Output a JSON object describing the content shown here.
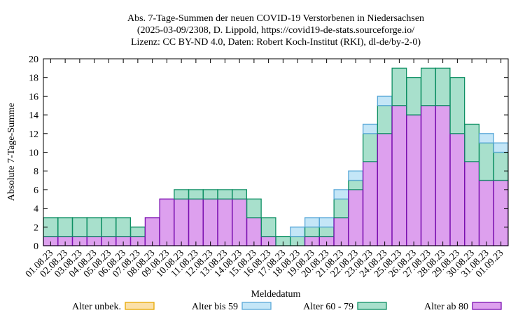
{
  "title": {
    "line1": "Abs. 7-Tage-Summen der neuen COVID-19 Verstorbenen in Niedersachsen",
    "line2": "(2025-03-09/2308, D. Lippold, https://covid19-de-stats.sourceforge.io/",
    "line3": "Lizenz: CC BY-ND 4.0, Daten: Robert Koch-Institut (RKI), dl-de/by-2-0)"
  },
  "chart_data": {
    "type": "bar",
    "stacked": true,
    "xlabel": "Meldedatum",
    "ylabel": "Absolute 7-Tage-Summe",
    "ylim": [
      0,
      20
    ],
    "yticks": [
      0,
      2,
      4,
      6,
      8,
      10,
      12,
      14,
      16,
      18,
      20
    ],
    "grid": false,
    "legend_position": "bottom",
    "categories": [
      "01.08.23",
      "02.08.23",
      "03.08.23",
      "04.08.23",
      "05.08.23",
      "06.08.23",
      "07.08.23",
      "08.08.23",
      "09.08.23",
      "10.08.23",
      "11.08.23",
      "12.08.23",
      "13.08.23",
      "14.08.23",
      "15.08.23",
      "16.08.23",
      "17.08.23",
      "18.08.23",
      "19.08.23",
      "20.08.23",
      "21.08.23",
      "22.08.23",
      "23.08.23",
      "24.08.23",
      "25.08.23",
      "26.08.23",
      "27.08.23",
      "28.08.23",
      "29.08.23",
      "30.08.23",
      "31.08.23",
      "01.09.23"
    ],
    "series": [
      {
        "name": "Alter ab 80",
        "fill": "#dda0ee",
        "stroke": "#7b10b0",
        "values": [
          1,
          1,
          1,
          1,
          1,
          1,
          1,
          3,
          5,
          5,
          5,
          5,
          5,
          5,
          3,
          1,
          0,
          0,
          1,
          1,
          3,
          6,
          9,
          12,
          15,
          14,
          15,
          15,
          12,
          9,
          7,
          7
        ]
      },
      {
        "name": "Alter 60 - 79",
        "fill": "#a8e0cc",
        "stroke": "#0e8f63",
        "values": [
          2,
          2,
          2,
          2,
          2,
          2,
          1,
          0,
          0,
          1,
          1,
          1,
          1,
          1,
          2,
          2,
          1,
          1,
          1,
          1,
          2,
          1,
          3,
          3,
          4,
          4,
          4,
          4,
          6,
          4,
          4,
          3
        ]
      },
      {
        "name": "Alter bis 59",
        "fill": "#c4e6f7",
        "stroke": "#5aa8d8",
        "values": [
          0,
          0,
          0,
          0,
          0,
          0,
          0,
          0,
          0,
          0,
          0,
          0,
          0,
          0,
          0,
          0,
          0,
          1,
          1,
          1,
          1,
          1,
          1,
          1,
          0,
          0,
          0,
          0,
          0,
          0,
          1,
          1
        ]
      },
      {
        "name": "Alter unbek.",
        "fill": "#fbe0a8",
        "stroke": "#e6a800",
        "values": [
          0,
          0,
          0,
          0,
          0,
          0,
          0,
          0,
          0,
          0,
          0,
          0,
          0,
          0,
          0,
          0,
          0,
          0,
          0,
          0,
          0,
          0,
          0,
          0,
          0,
          0,
          0,
          0,
          0,
          0,
          0,
          0
        ]
      }
    ]
  }
}
